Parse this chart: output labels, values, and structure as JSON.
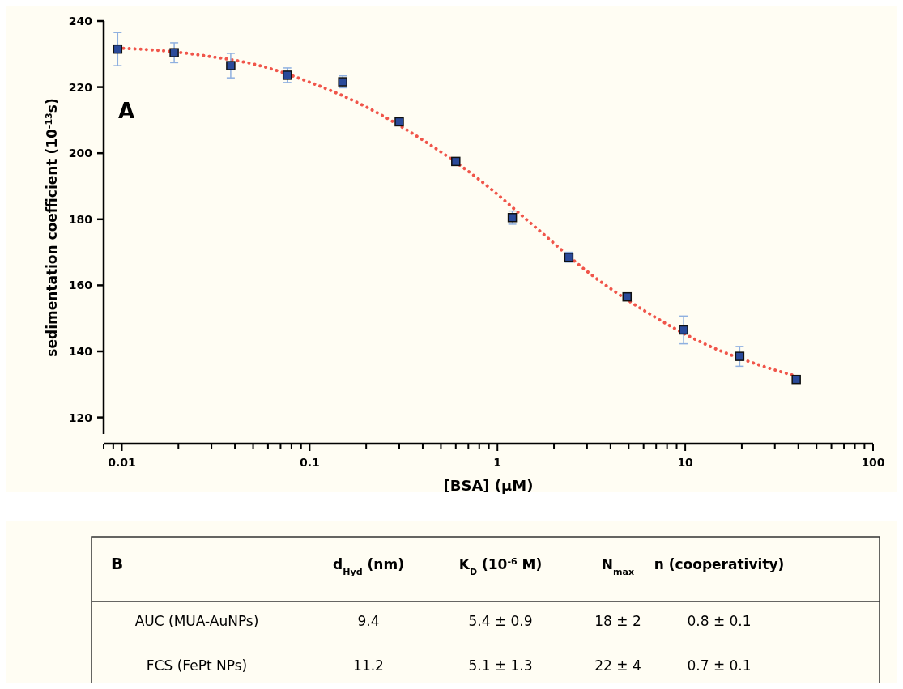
{
  "chart_data": [
    {
      "type": "scatter",
      "xlabel": "[BSA] (μM)",
      "ylabel": "sedimentation coefficient (10$^{-13}$s)",
      "annotations": [
        "A"
      ],
      "log": "x",
      "xlim": [
        0.008,
        100
      ],
      "ylim": [
        115,
        240
      ],
      "xticks": [
        {
          "value": 0.008,
          "label": null
        },
        {
          "value": 0.009,
          "label": null
        },
        0.01,
        {
          "value": 0.02,
          "label": null
        },
        {
          "value": 0.03,
          "label": null
        },
        {
          "value": 0.04,
          "label": null
        },
        {
          "value": 0.05,
          "label": null
        },
        {
          "value": 0.06,
          "label": null
        },
        {
          "value": 0.07,
          "label": null
        },
        {
          "value": 0.08,
          "label": null
        },
        {
          "value": 0.09,
          "label": null
        },
        0.1,
        {
          "value": 0.2,
          "label": null
        },
        {
          "value": 0.3,
          "label": null
        },
        {
          "value": 0.4,
          "label": null
        },
        {
          "value": 0.5,
          "label": null
        },
        {
          "value": 0.6,
          "label": null
        },
        {
          "value": 0.7,
          "label": null
        },
        {
          "value": 0.8,
          "label": null
        },
        {
          "value": 0.9,
          "label": null
        },
        1,
        {
          "value": 2,
          "label": null
        },
        {
          "value": 3,
          "label": null
        },
        {
          "value": 4,
          "label": null
        },
        {
          "value": 5,
          "label": null
        },
        {
          "value": 6,
          "label": null
        },
        {
          "value": 7,
          "label": null
        },
        {
          "value": 8,
          "label": null
        },
        {
          "value": 9,
          "label": null
        },
        10,
        {
          "value": 20,
          "label": null
        },
        {
          "value": 30,
          "label": null
        },
        {
          "value": 40,
          "label": null
        },
        {
          "value": 50,
          "label": null
        },
        {
          "value": 60,
          "label": null
        },
        {
          "value": 70,
          "label": null
        },
        {
          "value": 80,
          "label": null
        },
        {
          "value": 90,
          "label": null
        },
        100
      ],
      "yticks": [
        120,
        140,
        160,
        180,
        200,
        220,
        240
      ],
      "grid": false,
      "series": [
        {
          "type": "line",
          "color": "#f0554a",
          "line_style": "dotted",
          "marker": "none",
          "x": [
            0.0095,
            0.015,
            0.03,
            0.05,
            0.1,
            0.2,
            0.4,
            0.8,
            1.6,
            3.2,
            6.4,
            13,
            26,
            39
          ],
          "values": [
            231.8,
            231.2,
            229.2,
            227,
            221.5,
            214,
            204,
            192,
            177.5,
            163,
            151.5,
            142,
            135.5,
            132.5
          ]
        },
        {
          "type": "scatter",
          "color": "#2a4a9a",
          "marker": "square",
          "x": [
            0.0095,
            0.019,
            0.038,
            0.076,
            0.15,
            0.3,
            0.6,
            1.2,
            2.4,
            4.9,
            9.8,
            19.5,
            39
          ],
          "values": [
            231.5,
            230.4,
            226.5,
            223.6,
            221.6,
            209.5,
            197.5,
            180.5,
            168.5,
            156.5,
            146.5,
            138.5,
            131.5
          ],
          "errors": [
            5,
            3,
            3.7,
            2.2,
            1.8,
            null,
            null,
            2,
            1.5,
            null,
            4.2,
            3,
            null
          ]
        }
      ]
    },
    {
      "type": "other",
      "title": "B",
      "categories": [
        "d$_{Hyd}$ (nm)",
        "K$_{D}$ (10$^{-6}$ M)",
        "N$_{max}$",
        "n (cooperativity)"
      ],
      "y_categories": [
        "AUC (MUA-AuNPs)",
        "FCS (FePt NPs)"
      ],
      "cell_labels": [
        [
          "9.4",
          "5.4 ± 0.9",
          "18 ± 2",
          "0.8 ± 0.1"
        ],
        [
          "11.2",
          "5.1 ± 1.3",
          "22 ± 4",
          "0.7 ± 0.1"
        ]
      ]
    }
  ]
}
